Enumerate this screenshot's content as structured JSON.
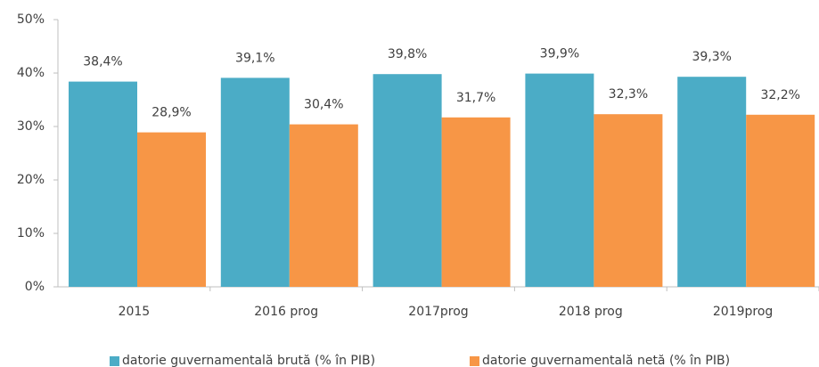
{
  "chart_data": {
    "type": "bar",
    "categories": [
      "2015",
      "2016 prog",
      "2017prog",
      "2018 prog",
      "2019prog"
    ],
    "series": [
      {
        "name": "datorie guvernamentală brută (% în PIB)",
        "color": "#4bacc6",
        "values": [
          38.4,
          39.1,
          39.8,
          39.9,
          39.3
        ],
        "value_labels": [
          "38,4%",
          "39,1%",
          "39,8%",
          "39,9%",
          "39,3%"
        ]
      },
      {
        "name": "datorie guvernamentală netă (% în PIB)",
        "color": "#f79646",
        "values": [
          28.9,
          30.4,
          31.7,
          32.3,
          32.2
        ],
        "value_labels": [
          "28,9%",
          "30,4%",
          "31,7%",
          "32,3%",
          "32,2%"
        ]
      }
    ],
    "ylim": [
      0,
      50
    ],
    "yticks": [
      {
        "value": 0,
        "label": "0%"
      },
      {
        "value": 10,
        "label": "10%"
      },
      {
        "value": 20,
        "label": "20%"
      },
      {
        "value": 30,
        "label": "30%"
      },
      {
        "value": 40,
        "label": "40%"
      },
      {
        "value": 50,
        "label": "50%"
      }
    ],
    "grid": false,
    "legend": "bottom"
  }
}
